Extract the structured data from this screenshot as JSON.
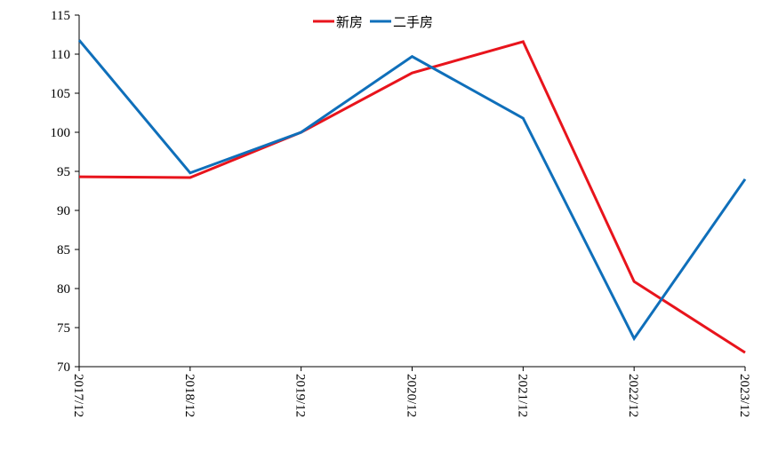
{
  "chart_data": {
    "type": "line",
    "categories": [
      "2017/12",
      "2018/12",
      "2019/12",
      "2020/12",
      "2021/12",
      "2022/12",
      "2023/12"
    ],
    "series": [
      {
        "name": "新房",
        "color": "#e8141c",
        "values": [
          94.3,
          94.2,
          100,
          107.6,
          111.6,
          80.9,
          71.8
        ]
      },
      {
        "name": "二手房",
        "color": "#0f6fba",
        "values": [
          111.8,
          94.8,
          100,
          109.7,
          101.8,
          73.6,
          94.0
        ]
      }
    ],
    "ylim": [
      70,
      115
    ],
    "yticks": [
      70,
      75,
      80,
      85,
      90,
      95,
      100,
      105,
      110,
      115
    ],
    "legend": "top"
  }
}
